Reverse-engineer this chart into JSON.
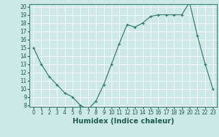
{
  "x": [
    0,
    1,
    2,
    3,
    4,
    5,
    6,
    7,
    8,
    9,
    10,
    11,
    12,
    13,
    14,
    15,
    16,
    17,
    18,
    19,
    20,
    21,
    22,
    23
  ],
  "y": [
    15,
    13,
    11.5,
    10.5,
    9.5,
    9,
    8,
    7.5,
    8.5,
    10.5,
    13,
    15.5,
    17.8,
    17.5,
    18,
    18.8,
    19,
    19,
    19,
    19,
    20.5,
    16.5,
    13,
    10
  ],
  "line_color": "#2e7d6e",
  "marker": "+",
  "bg_color": "#cce8e8",
  "grid_color": "#ffffff",
  "xlabel": "Humidex (Indice chaleur)",
  "ylim": [
    8,
    20
  ],
  "xlim": [
    -0.5,
    23.5
  ],
  "yticks": [
    8,
    9,
    10,
    11,
    12,
    13,
    14,
    15,
    16,
    17,
    18,
    19,
    20
  ],
  "xticks": [
    0,
    1,
    2,
    3,
    4,
    5,
    6,
    7,
    8,
    9,
    10,
    11,
    12,
    13,
    14,
    15,
    16,
    17,
    18,
    19,
    20,
    21,
    22,
    23
  ],
  "tick_label_fontsize": 5.5,
  "xlabel_fontsize": 7.5,
  "line_color_spine": "#2e7d6e",
  "label_color": "#1a5c52"
}
